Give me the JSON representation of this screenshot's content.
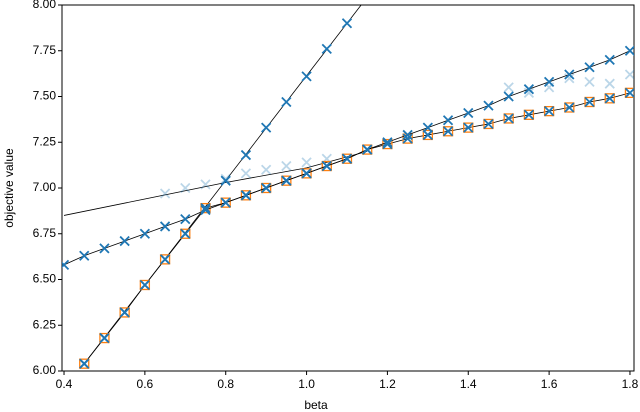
{
  "chart_data": {
    "type": "scatter",
    "xlabel": "beta",
    "ylabel": "objective value",
    "xlim": [
      0.395,
      1.81
    ],
    "ylim": [
      6.0,
      8.0
    ],
    "xticks": [
      0.4,
      0.6,
      0.8,
      {
        "value": 1,
        "label": "1.0"
      },
      1.2,
      1.4,
      1.6,
      1.8
    ],
    "yticks": [
      {
        "value": 6,
        "label": "6.00"
      },
      {
        "value": 6.25,
        "label": "6.25"
      },
      {
        "value": 6.5,
        "label": "6.50"
      },
      {
        "value": 6.75,
        "label": "6.75"
      },
      {
        "value": 7,
        "label": "7.00"
      },
      {
        "value": 7.25,
        "label": "7.25"
      },
      {
        "value": 7.5,
        "label": "7.50"
      },
      {
        "value": 7.75,
        "label": "7.75"
      },
      {
        "value": 8,
        "label": "8.00"
      }
    ],
    "series": [
      {
        "marker": "none",
        "line": true,
        "color": "#000000",
        "x": [
          0.45,
          1.135
        ],
        "values": [
          6.04,
          8.0
        ]
      },
      {
        "marker": "none",
        "line": true,
        "color": "#000000",
        "x": [
          0.4,
          0.6,
          0.8,
          1.0,
          1.15
        ],
        "values": [
          6.85,
          6.94,
          7.03,
          7.11,
          7.2
        ]
      },
      {
        "marker": "x",
        "line": false,
        "color": "#1f77b4",
        "alpha": 0.3,
        "x": [
          0.65,
          0.7,
          0.75,
          0.8,
          0.85,
          0.9,
          0.95,
          1.0,
          1.05,
          1.5,
          1.55,
          1.6,
          1.65,
          1.7,
          1.75,
          1.8
        ],
        "values": [
          6.97,
          7.0,
          7.02,
          7.05,
          7.08,
          7.1,
          7.12,
          7.14,
          7.16,
          7.55,
          7.52,
          7.55,
          7.6,
          7.58,
          7.57,
          7.62
        ]
      },
      {
        "marker": "x",
        "line": false,
        "color": "#1f77b4",
        "x": [
          0.45,
          0.5,
          0.55,
          0.6,
          0.65,
          0.7,
          0.75,
          0.8,
          0.85,
          0.9,
          0.95,
          1.0,
          1.05,
          1.1
        ],
        "values": [
          6.04,
          6.18,
          6.32,
          6.47,
          6.61,
          6.75,
          6.89,
          7.04,
          7.18,
          7.33,
          7.47,
          7.61,
          7.76,
          7.9
        ]
      },
      {
        "marker": "square",
        "line": true,
        "color": "#ff7f0e",
        "x": [
          0.45,
          0.5,
          0.55,
          0.6,
          0.65,
          0.7,
          0.75,
          0.8,
          0.85,
          0.9,
          0.95,
          1.0,
          1.05,
          1.1,
          1.15,
          1.2,
          1.25,
          1.3,
          1.35,
          1.4,
          1.45,
          1.5,
          1.55,
          1.6,
          1.65,
          1.7,
          1.75,
          1.8
        ],
        "values": [
          6.04,
          6.18,
          6.32,
          6.47,
          6.61,
          6.75,
          6.89,
          6.92,
          6.96,
          7.0,
          7.04,
          7.08,
          7.12,
          7.16,
          7.21,
          7.24,
          7.27,
          7.29,
          7.31,
          7.33,
          7.35,
          7.38,
          7.4,
          7.42,
          7.44,
          7.47,
          7.49,
          7.52
        ]
      },
      {
        "marker": "x",
        "line": true,
        "color": "#1f77b4",
        "x": [
          0.4,
          0.45,
          0.5,
          0.55,
          0.6,
          0.65,
          0.7,
          0.75,
          0.8,
          0.85,
          0.9,
          0.95,
          1.0,
          1.05,
          1.1,
          1.15,
          1.2,
          1.25,
          1.3,
          1.35,
          1.4,
          1.45,
          1.5,
          1.55,
          1.6,
          1.65,
          1.7,
          1.75,
          1.8
        ],
        "values": [
          6.58,
          6.63,
          6.67,
          6.71,
          6.75,
          6.79,
          6.83,
          6.88,
          6.92,
          6.96,
          7.0,
          7.04,
          7.08,
          7.12,
          7.16,
          7.21,
          7.25,
          7.29,
          7.33,
          7.37,
          7.41,
          7.45,
          7.5,
          7.54,
          7.58,
          7.62,
          7.66,
          7.7,
          7.75
        ]
      },
      {
        "marker": "x",
        "line": false,
        "color": "#1f77b4",
        "x": [
          0.45,
          0.5,
          0.55,
          0.6,
          0.65,
          0.7,
          0.75,
          0.8,
          0.85,
          0.9,
          0.95,
          1.0,
          1.05,
          1.1,
          1.15,
          1.2,
          1.25,
          1.3,
          1.35,
          1.4,
          1.45,
          1.5,
          1.55,
          1.6,
          1.65,
          1.7,
          1.75,
          1.8
        ],
        "values": [
          6.04,
          6.18,
          6.32,
          6.47,
          6.61,
          6.75,
          6.89,
          6.92,
          6.96,
          7.0,
          7.04,
          7.08,
          7.12,
          7.16,
          7.21,
          7.24,
          7.27,
          7.29,
          7.31,
          7.33,
          7.35,
          7.38,
          7.4,
          7.42,
          7.44,
          7.47,
          7.49,
          7.52
        ]
      }
    ]
  }
}
